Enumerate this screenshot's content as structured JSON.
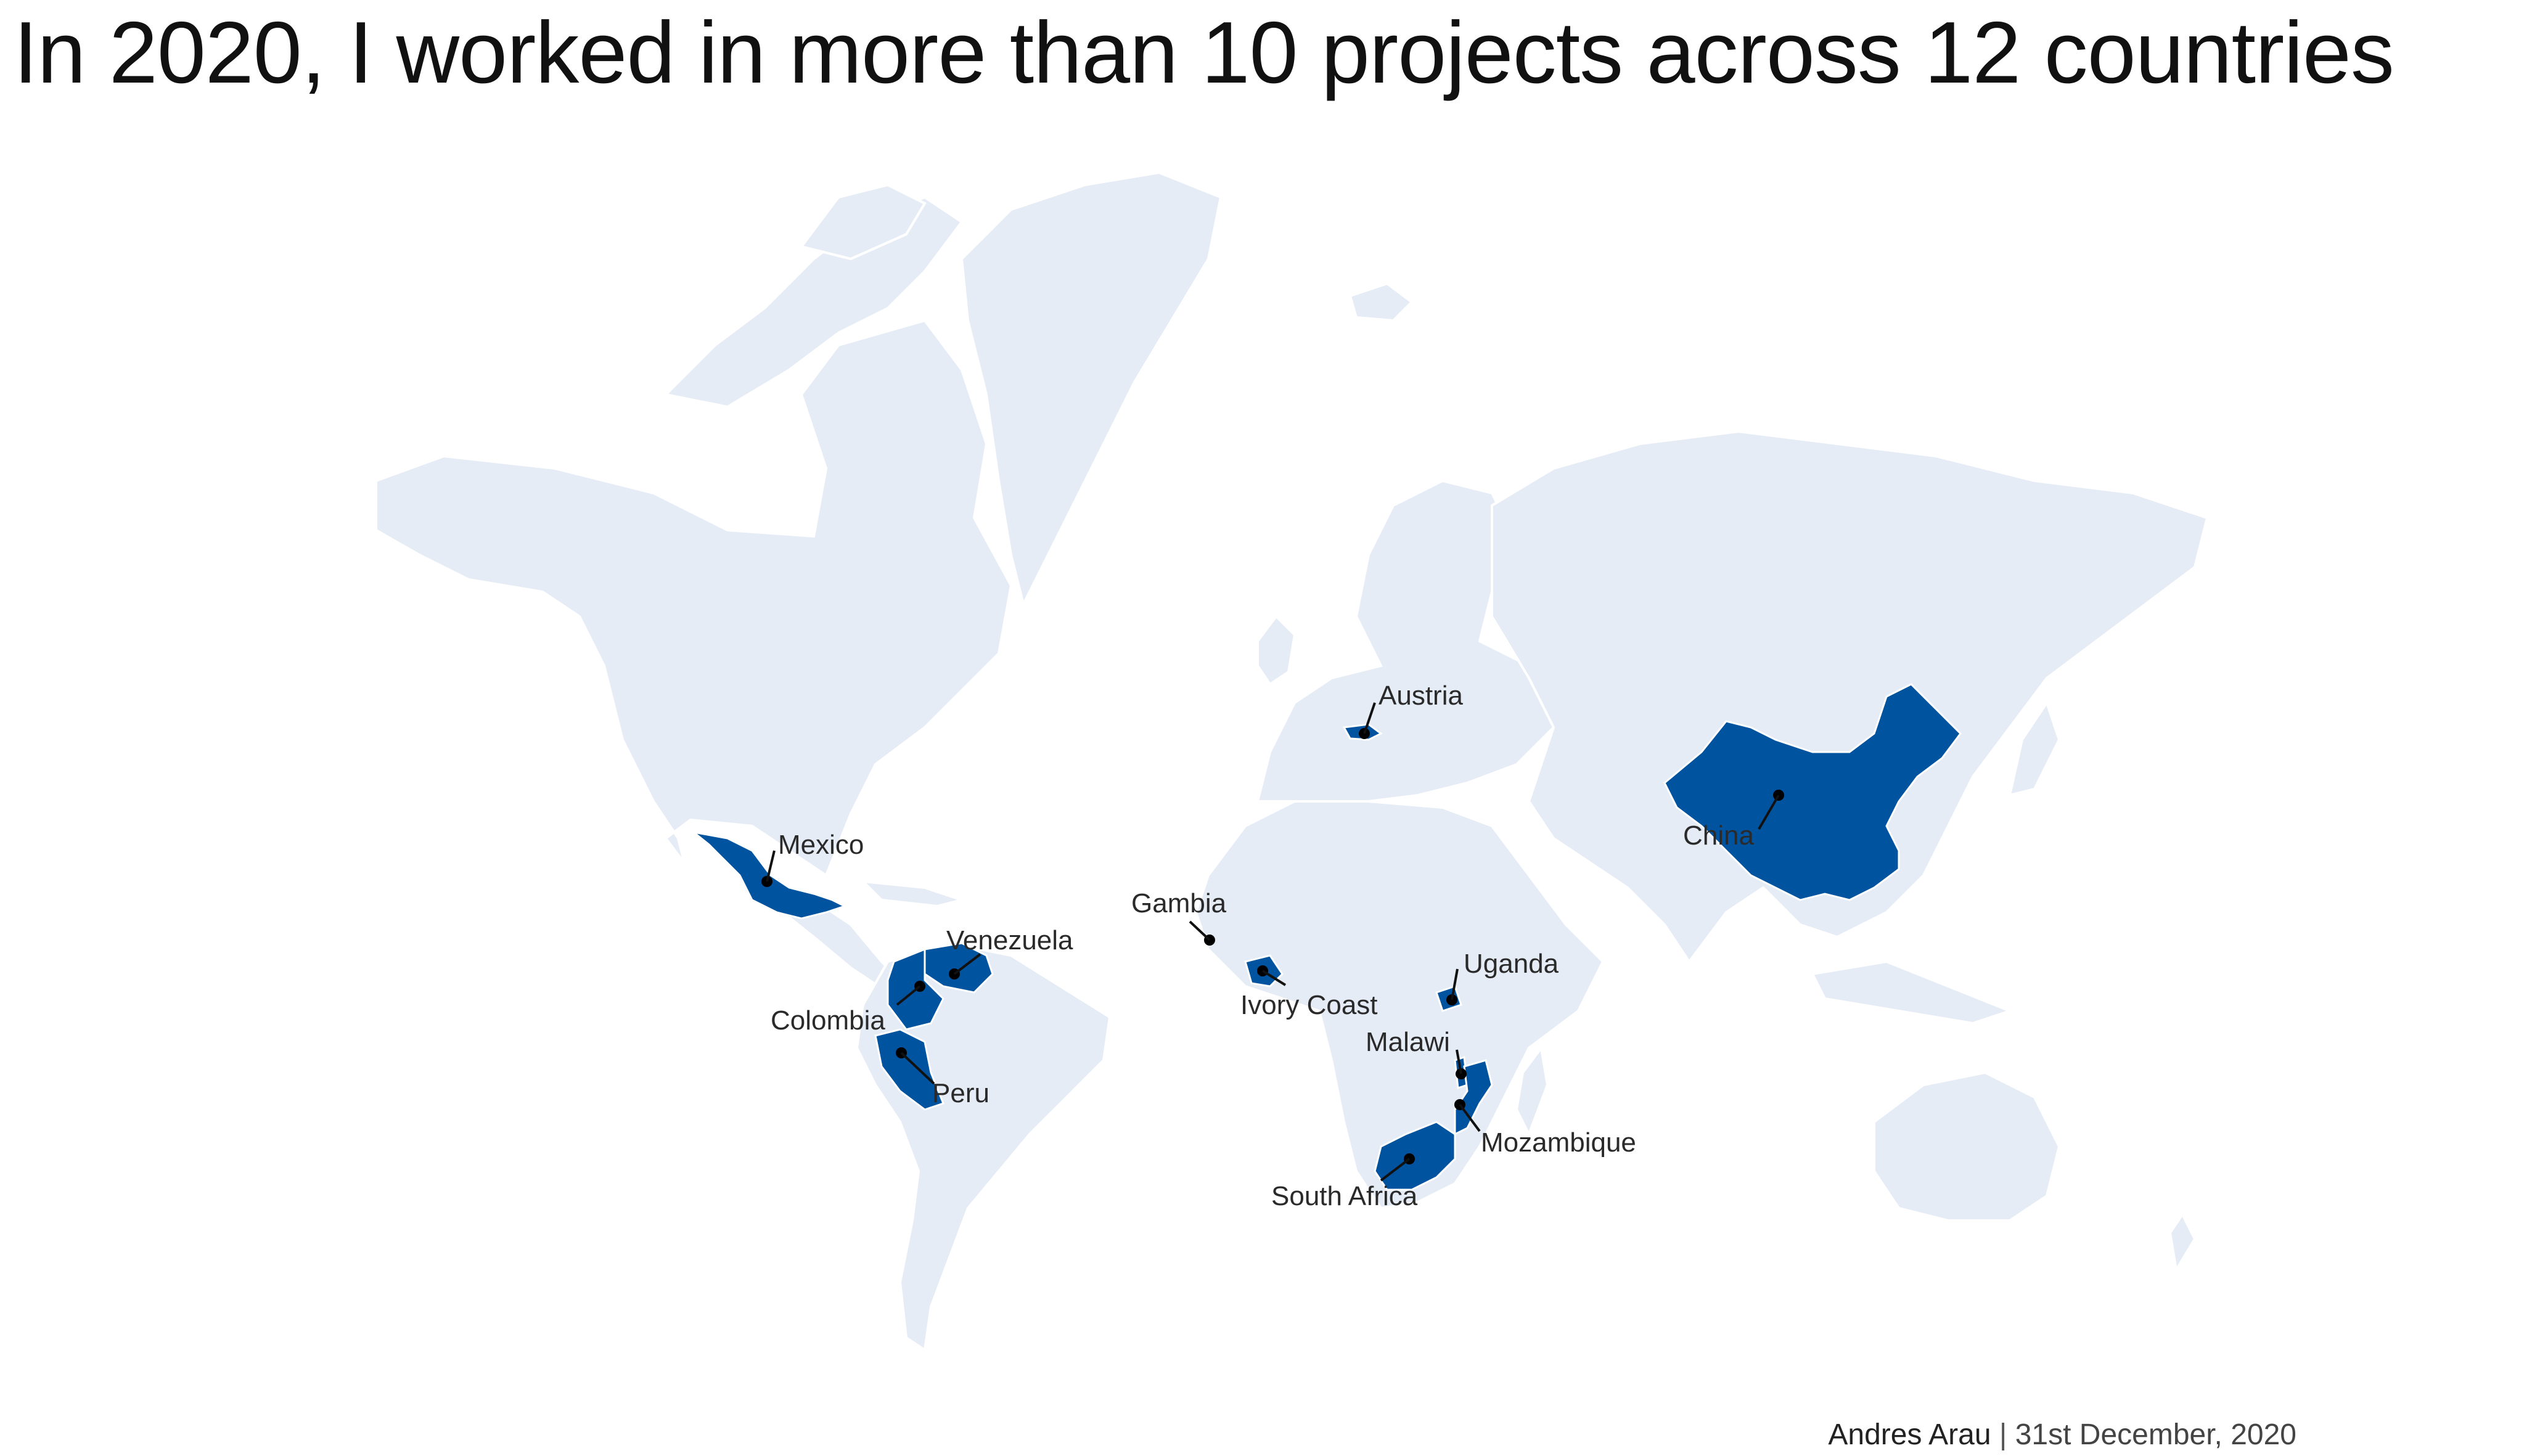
{
  "title": "In 2020, I worked in more than 10 projects across 12 countries",
  "colors": {
    "land": "#e5ecf6",
    "highlight": "#00539f",
    "border": "#ffffff",
    "marker": "#000000"
  },
  "map": {
    "highlighted_countries": [
      "Mexico",
      "Venezuela",
      "Colombia",
      "Peru",
      "Gambia",
      "Ivory Coast",
      "Austria",
      "China",
      "Uganda",
      "Malawi",
      "Mozambique",
      "South Africa"
    ],
    "labels": {
      "mexico": "Mexico",
      "venezuela": "Venezuela",
      "colombia": "Colombia",
      "peru": "Peru",
      "gambia": "Gambia",
      "ivory_coast": "Ivory Coast",
      "austria": "Austria",
      "china": "China",
      "uganda": "Uganda",
      "malawi": "Malawi",
      "mozambique": "Mozambique",
      "south_africa": "South Africa"
    }
  },
  "footer": {
    "author": "Andres Arau",
    "separator": "|",
    "date": "31st December, 2020"
  }
}
